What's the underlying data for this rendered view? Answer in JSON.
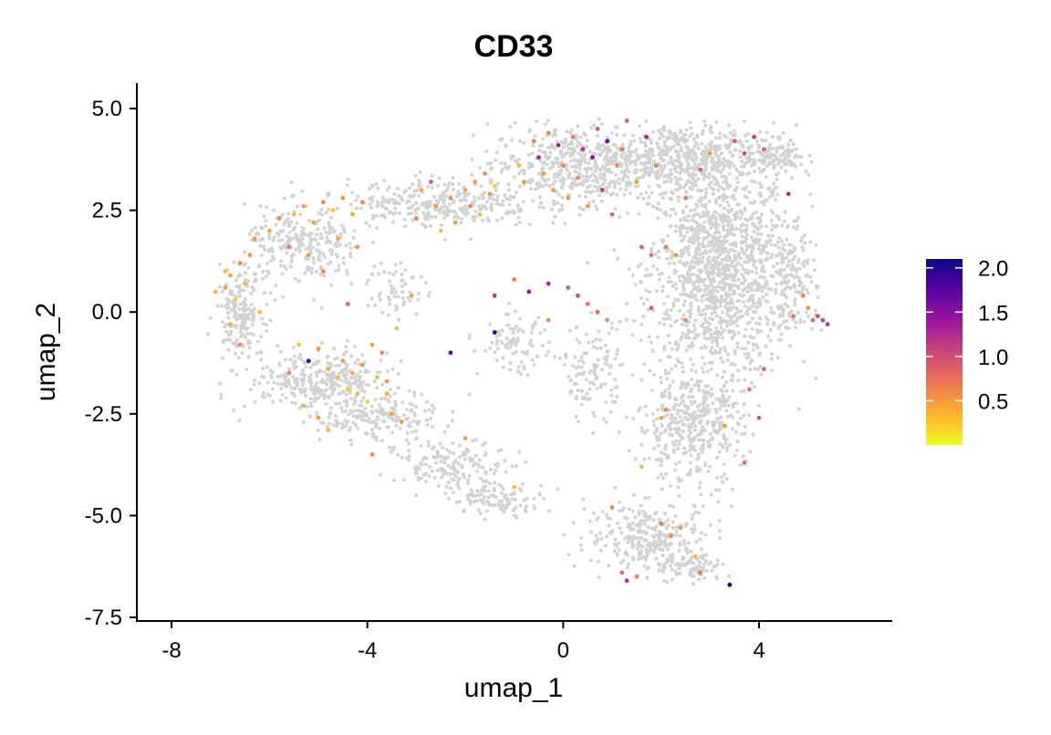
{
  "chart_data": {
    "type": "scatter",
    "title": "CD33",
    "xlabel": "umap_1",
    "ylabel": "umap_2",
    "xlim": [
      -8.7,
      6.6
    ],
    "ylim": [
      -7.6,
      5.6
    ],
    "x_ticks": [
      -8,
      -4,
      0,
      4
    ],
    "x_tick_labels": [
      "-8",
      "-4",
      "0",
      "4"
    ],
    "y_ticks": [
      5.0,
      2.5,
      0.0,
      -2.5,
      -5.0,
      -7.5
    ],
    "y_tick_labels": [
      "5.0",
      "2.5",
      "0.0",
      "-2.5",
      "-5.0",
      "-7.5"
    ],
    "grid": false,
    "legend_position": "right",
    "colorbar": {
      "min": 0.0,
      "max": 2.1,
      "ticks": [
        2.0,
        1.5,
        1.0,
        0.5
      ],
      "tick_labels": [
        "2.0",
        "1.5",
        "1.0",
        "0.5"
      ],
      "colors": [
        "#F0F921",
        "#FDB32F",
        "#EB7655",
        "#CC4778",
        "#9C179E",
        "#5B02A3",
        "#0D0887"
      ]
    },
    "background_color": "#D3D3D3",
    "expressing_points": [
      [
        -7.1,
        0.5,
        0.3
      ],
      [
        -6.9,
        0.6,
        0.5
      ],
      [
        -6.8,
        0.9,
        0.4
      ],
      [
        -6.7,
        0.3,
        0.2
      ],
      [
        -6.6,
        1.2,
        0.6
      ],
      [
        -6.5,
        0.7,
        0.3
      ],
      [
        -6.4,
        1.4,
        0.5
      ],
      [
        -6.8,
        -0.3,
        0.4
      ],
      [
        -6.6,
        -0.8,
        0.6
      ],
      [
        -6.9,
        1.0,
        0.3
      ],
      [
        -6.3,
        1.8,
        0.5
      ],
      [
        -6.0,
        2.0,
        0.4
      ],
      [
        -5.8,
        2.3,
        0.6
      ],
      [
        -5.5,
        2.4,
        0.3
      ],
      [
        -5.3,
        2.6,
        0.5
      ],
      [
        -5.1,
        2.2,
        0.4
      ],
      [
        -4.9,
        2.7,
        0.6
      ],
      [
        -4.7,
        2.5,
        0.3
      ],
      [
        -4.5,
        2.8,
        0.5
      ],
      [
        -4.3,
        2.4,
        0.4
      ],
      [
        -4.1,
        2.7,
        0.6
      ],
      [
        -5.6,
        1.6,
        0.7
      ],
      [
        -5.2,
        1.4,
        0.5
      ],
      [
        -4.9,
        1.0,
        0.6
      ],
      [
        -4.6,
        1.8,
        0.4
      ],
      [
        -4.4,
        0.2,
        0.8
      ],
      [
        -4.2,
        1.6,
        0.5
      ],
      [
        -5.4,
        -0.8,
        0.3
      ],
      [
        -5.2,
        -1.2,
        1.8
      ],
      [
        -5.0,
        -0.9,
        0.5
      ],
      [
        -4.8,
        -1.4,
        0.4
      ],
      [
        -4.6,
        -1.6,
        0.3
      ],
      [
        -4.5,
        -1.2,
        0.5
      ],
      [
        -4.4,
        -1.9,
        0.2
      ],
      [
        -4.3,
        -1.5,
        0.4
      ],
      [
        -4.2,
        -2.0,
        0.3
      ],
      [
        -4.1,
        -1.3,
        0.5
      ],
      [
        -4.0,
        -2.2,
        0.2
      ],
      [
        -3.9,
        -0.8,
        0.4
      ],
      [
        -3.8,
        -1.6,
        0.3
      ],
      [
        -3.7,
        -1.0,
        0.6
      ],
      [
        -3.6,
        -1.7,
        0.5
      ],
      [
        -3.5,
        -2.5,
        0.4
      ],
      [
        -3.4,
        -0.4,
        0.3
      ],
      [
        -3.3,
        -2.7,
        0.5
      ],
      [
        -5.6,
        -1.5,
        0.6
      ],
      [
        -5.3,
        -2.3,
        0.4
      ],
      [
        -5.0,
        -2.6,
        0.5
      ],
      [
        -4.8,
        -2.9,
        0.3
      ],
      [
        -3.9,
        -3.5,
        0.6
      ],
      [
        -3.1,
        0.4,
        0.5
      ],
      [
        -3.0,
        2.3,
        0.6
      ],
      [
        -2.9,
        3.0,
        0.4
      ],
      [
        -2.7,
        3.2,
        0.9
      ],
      [
        -2.6,
        2.6,
        0.5
      ],
      [
        -2.5,
        2.0,
        0.3
      ],
      [
        -2.3,
        2.8,
        0.6
      ],
      [
        -2.2,
        2.2,
        0.5
      ],
      [
        -2.0,
        3.0,
        0.4
      ],
      [
        -1.9,
        2.6,
        0.6
      ],
      [
        -1.8,
        3.2,
        0.5
      ],
      [
        -1.7,
        2.4,
        0.3
      ],
      [
        -1.6,
        3.4,
        0.6
      ],
      [
        -1.5,
        2.9,
        0.5
      ],
      [
        -1.4,
        3.1,
        0.2
      ],
      [
        -2.3,
        -1.0,
        1.7
      ],
      [
        -1.4,
        -0.5,
        1.9
      ],
      [
        -1.4,
        0.4,
        1.2
      ],
      [
        -1.0,
        0.8,
        0.6
      ],
      [
        -1.0,
        -4.3,
        0.3
      ],
      [
        -0.9,
        3.6,
        0.3
      ],
      [
        -0.8,
        3.2,
        0.5
      ],
      [
        -0.6,
        4.2,
        0.6
      ],
      [
        -0.5,
        3.8,
        1.3
      ],
      [
        -0.4,
        3.4,
        0.5
      ],
      [
        -0.3,
        4.4,
        0.6
      ],
      [
        -0.2,
        3.0,
        0.5
      ],
      [
        -0.1,
        4.1,
        1.4
      ],
      [
        0.0,
        3.6,
        0.6
      ],
      [
        0.1,
        2.8,
        0.5
      ],
      [
        0.2,
        4.3,
        0.7
      ],
      [
        0.3,
        3.3,
        0.6
      ],
      [
        0.4,
        4.0,
        1.2
      ],
      [
        0.5,
        2.6,
        0.5
      ],
      [
        0.6,
        3.8,
        1.5
      ],
      [
        0.7,
        4.5,
        0.9
      ],
      [
        0.8,
        3.0,
        1.1
      ],
      [
        0.9,
        4.2,
        1.6
      ],
      [
        1.0,
        2.4,
        0.8
      ],
      [
        1.1,
        3.6,
        0.6
      ],
      [
        1.2,
        4.0,
        0.7
      ],
      [
        1.3,
        4.7,
        0.9
      ],
      [
        1.5,
        3.2,
        0.5
      ],
      [
        1.7,
        4.3,
        1.3
      ],
      [
        1.9,
        3.6,
        0.6
      ],
      [
        -0.7,
        0.5,
        1.4
      ],
      [
        -0.3,
        0.7,
        1.3
      ],
      [
        0.1,
        0.6,
        0.9
      ],
      [
        0.3,
        0.4,
        1.0
      ],
      [
        0.5,
        0.2,
        0.7
      ],
      [
        0.7,
        0.0,
        0.8
      ],
      [
        0.9,
        -0.2,
        0.6
      ],
      [
        -0.3,
        -0.2,
        0.6
      ],
      [
        1.6,
        1.6,
        0.8
      ],
      [
        1.8,
        1.4,
        0.7
      ],
      [
        2.1,
        1.6,
        0.6
      ],
      [
        2.3,
        1.4,
        0.5
      ],
      [
        2.5,
        2.8,
        0.7
      ],
      [
        2.8,
        3.5,
        0.8
      ],
      [
        3.0,
        3.9,
        0.5
      ],
      [
        3.5,
        4.2,
        0.9
      ],
      [
        3.7,
        3.9,
        1.0
      ],
      [
        3.9,
        4.3,
        1.1
      ],
      [
        4.1,
        4.0,
        0.8
      ],
      [
        4.6,
        2.9,
        1.2
      ],
      [
        1.8,
        0.1,
        0.9
      ],
      [
        2.5,
        -0.2,
        0.6
      ],
      [
        4.1,
        -1.4,
        0.8
      ],
      [
        3.8,
        -1.9,
        0.7
      ],
      [
        4.0,
        -2.6,
        0.9
      ],
      [
        2.1,
        -2.4,
        0.6
      ],
      [
        2.0,
        -2.6,
        0.4
      ],
      [
        3.3,
        -2.8,
        0.5
      ],
      [
        3.7,
        -3.7,
        0.8
      ],
      [
        1.6,
        -3.8,
        0.3
      ],
      [
        2.0,
        -5.2,
        0.7
      ],
      [
        2.2,
        -5.5,
        0.6
      ],
      [
        2.4,
        -5.3,
        0.5
      ],
      [
        1.0,
        -4.8,
        0.6
      ],
      [
        2.7,
        -6.0,
        0.3
      ],
      [
        1.2,
        -6.4,
        0.8
      ],
      [
        1.3,
        -6.6,
        1.2
      ],
      [
        1.5,
        -6.5,
        0.6
      ],
      [
        2.8,
        -6.4,
        0.7
      ],
      [
        3.4,
        -6.7,
        2.1
      ],
      [
        4.9,
        0.4,
        0.6
      ],
      [
        5.0,
        0.1,
        0.5
      ],
      [
        5.1,
        -0.2,
        0.8
      ],
      [
        5.2,
        -0.1,
        1.0
      ],
      [
        5.3,
        -0.2,
        1.1
      ],
      [
        5.4,
        -0.3,
        1.2
      ],
      [
        4.7,
        -0.1,
        0.7
      ],
      [
        -2.0,
        -3.1,
        0.5
      ],
      [
        -3.6,
        -2.0,
        0.4
      ],
      [
        -6.2,
        0.0,
        0.3
      ]
    ]
  }
}
